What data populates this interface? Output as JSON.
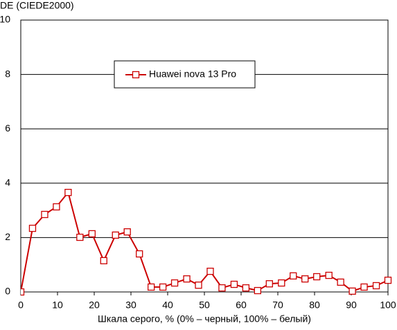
{
  "chart_data": {
    "type": "line",
    "y_label": "DE (CIEDE2000)",
    "x_label": "Шкала серого, % (0% – черный, 100% – белый)",
    "xlim": [
      0,
      100
    ],
    "xticks": [
      0,
      10,
      20,
      30,
      40,
      50,
      60,
      70,
      80,
      90,
      100
    ],
    "ylim": [
      0,
      10
    ],
    "yticks": [
      0,
      2,
      4,
      6,
      8,
      10
    ],
    "grid": true,
    "legend": "top-center",
    "series": [
      {
        "name": "Huawei nova 13 Pro",
        "color": "#cc0000",
        "x": [
          0,
          3.2,
          6.5,
          9.7,
          12.9,
          16.1,
          19.4,
          22.6,
          25.8,
          29,
          32.3,
          35.5,
          38.7,
          41.9,
          45.2,
          48.4,
          51.6,
          54.8,
          58.1,
          61.3,
          64.5,
          67.7,
          71,
          74.2,
          77.4,
          80.6,
          83.9,
          87.1,
          90.3,
          93.5,
          96.8,
          100
        ],
        "values": [
          0,
          2.34,
          2.85,
          3.13,
          3.66,
          2.01,
          2.14,
          1.15,
          2.09,
          2.21,
          1.4,
          0.18,
          0.18,
          0.33,
          0.48,
          0.25,
          0.76,
          0.15,
          0.28,
          0.15,
          0.05,
          0.3,
          0.33,
          0.59,
          0.48,
          0.56,
          0.61,
          0.36,
          0.03,
          0.18,
          0.23,
          0.43
        ]
      }
    ]
  }
}
